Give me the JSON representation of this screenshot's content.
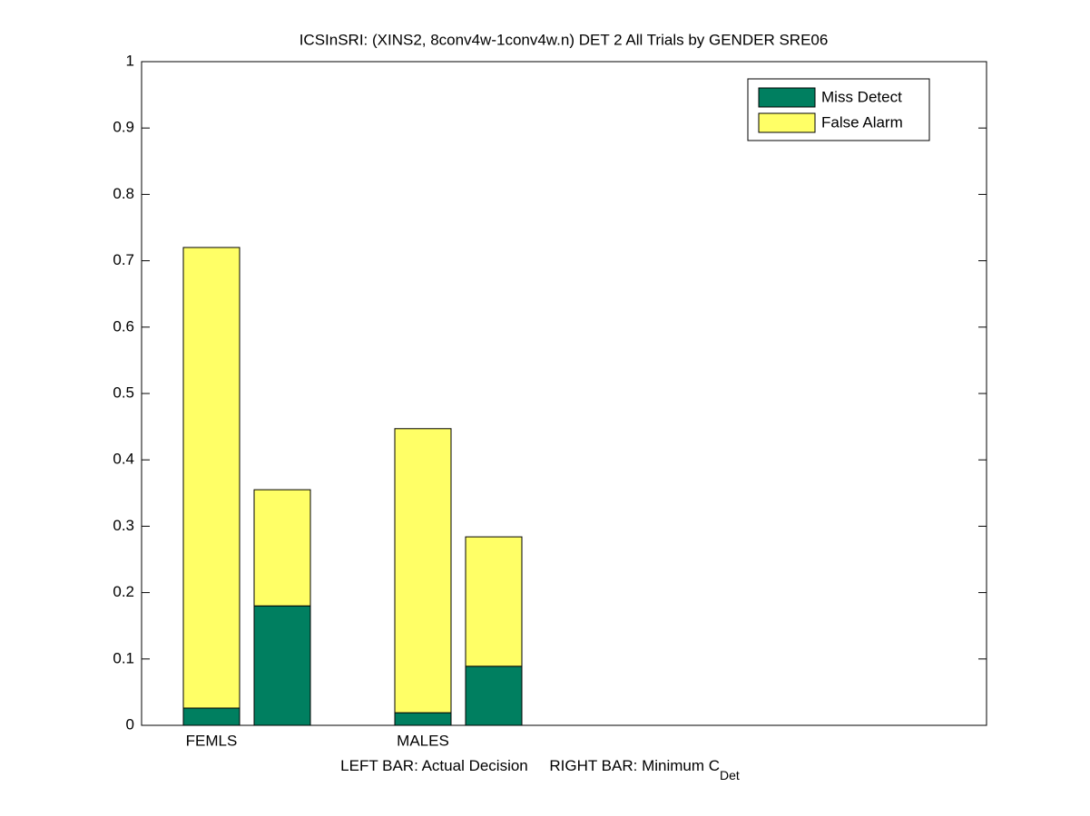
{
  "chart_data": {
    "type": "stacked_bar",
    "title": "ICSInSRI: (XINS2, 8conv4w-1conv4w.n) DET 2 All Trials by GENDER SRE06",
    "categories": [
      "FEMLS",
      null,
      "MALES",
      null
    ],
    "series": [
      {
        "name": "Miss Detect",
        "color": "#007f60",
        "values": [
          0.026,
          0.18,
          0.019,
          0.089
        ]
      },
      {
        "name": "False Alarm",
        "color": "#ffff66",
        "values": [
          0.694,
          0.175,
          0.428,
          0.195
        ]
      }
    ],
    "x_label": {
      "text": "LEFT BAR: Actual Decision     RIGHT BAR: Minimum C",
      "subscript": "Det"
    },
    "ylim": [
      0,
      1
    ],
    "yticks": [
      0,
      0.1,
      0.2,
      0.3,
      0.4,
      0.5,
      0.6,
      0.7,
      0.8,
      0.9,
      1
    ],
    "grid": false,
    "legend": "upper right"
  }
}
